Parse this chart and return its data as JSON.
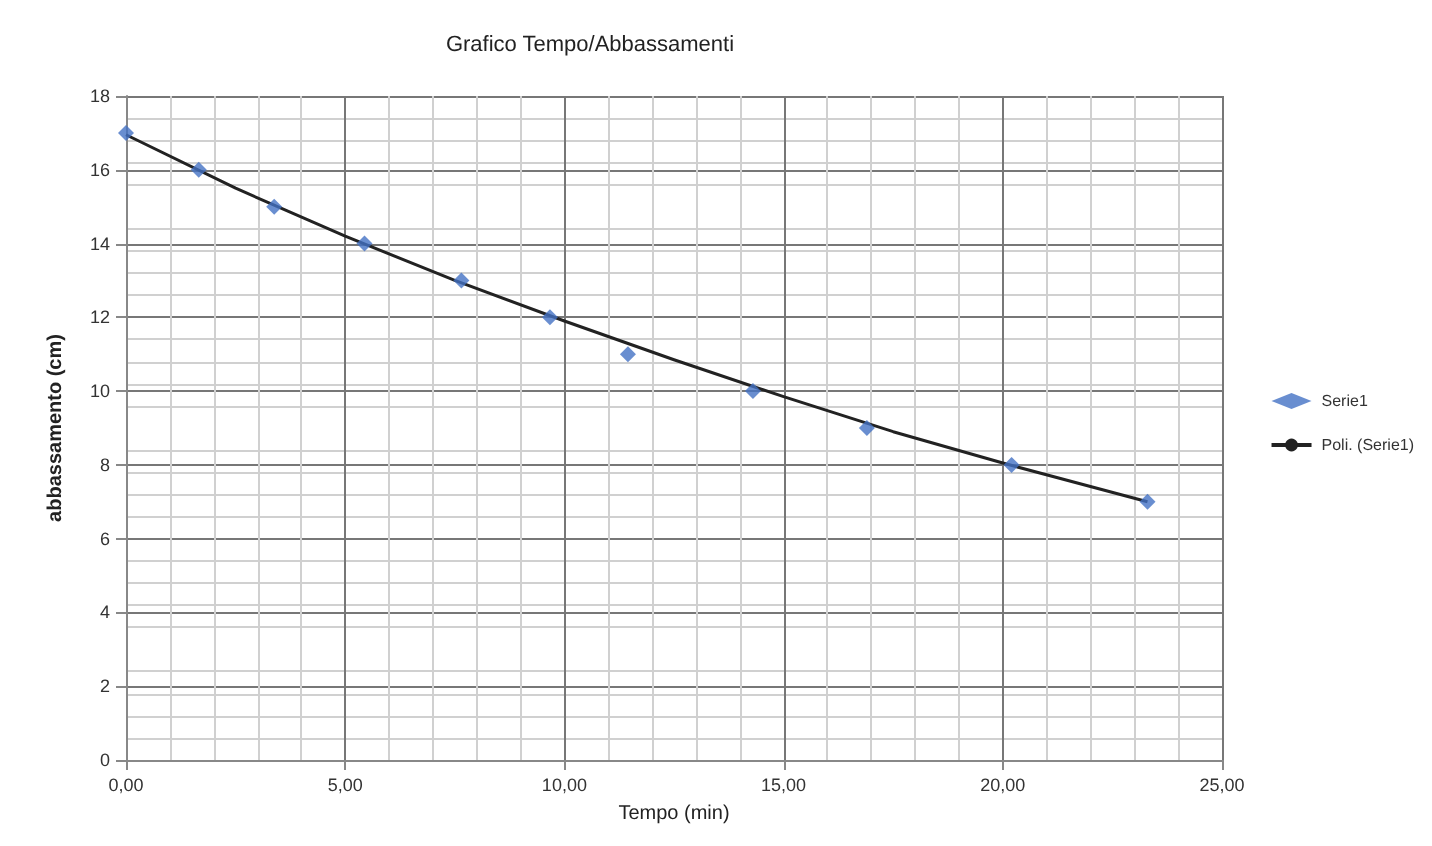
{
  "chart_data": {
    "type": "scatter",
    "title": "Grafico Tempo/Abbassamenti",
    "xlabel": "Tempo (min)",
    "ylabel": "abbassamento (cm)",
    "xlim": [
      0,
      25
    ],
    "xticks": [
      {
        "value": 0,
        "label": "0,00"
      },
      {
        "value": 5,
        "label": "5,00"
      },
      {
        "value": 10,
        "label": "10,00"
      },
      {
        "value": 15,
        "label": "15,00"
      },
      {
        "value": 20,
        "label": "20,00"
      },
      {
        "value": 25,
        "label": "25,00"
      }
    ],
    "ylim": [
      0,
      18
    ],
    "yticks": [
      0,
      2,
      4,
      6,
      8,
      10,
      12,
      14,
      16,
      18
    ],
    "series": [
      {
        "name": "Serie1",
        "marker": "diamond",
        "color": "#4472c4",
        "x": [
          0,
          1.66,
          3.38,
          5.44,
          7.65,
          9.67,
          11.45,
          14.3,
          16.9,
          20.2,
          23.3
        ],
        "values": [
          17,
          16,
          15,
          14,
          13,
          12,
          11,
          10,
          9,
          8,
          7
        ]
      },
      {
        "name": "Poli. (Serie1)",
        "type": "line",
        "marker": "none",
        "color": "#222222",
        "x": [
          0,
          2.5,
          5,
          7.5,
          10,
          12.5,
          15,
          17.5,
          20,
          23.3
        ],
        "values": [
          16.95,
          15.5,
          14.2,
          13.0,
          11.9,
          10.85,
          9.85,
          8.9,
          8.05,
          7.0
        ]
      }
    ],
    "line_style": "solid",
    "grid": true,
    "legend": "right"
  }
}
